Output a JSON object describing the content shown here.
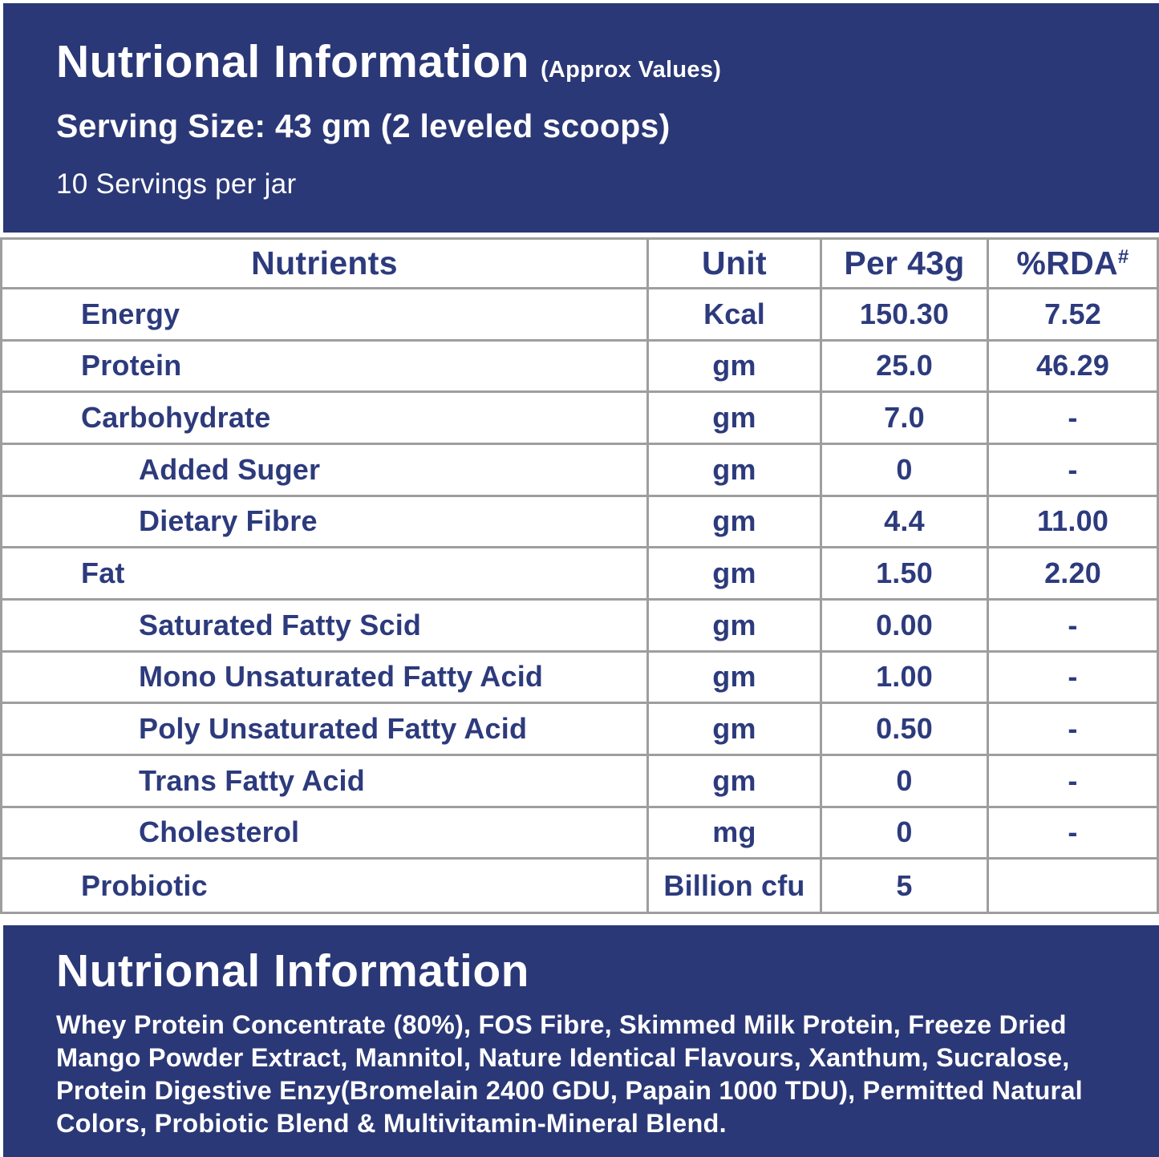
{
  "colors": {
    "navy_bg": "#2b3877",
    "table_text_navy": "#2d3b7d",
    "border_gray": "#9e9e9e",
    "white": "#ffffff"
  },
  "header": {
    "title": "Nutrional Information",
    "title_suffix": "(Approx Values)",
    "serving_size": "Serving Size: 43 gm (2 leveled scoops)",
    "servings_per_jar": "10 Servings per jar"
  },
  "table": {
    "columns": [
      "Nutrients",
      "Unit",
      "Per 43g",
      "%RDA"
    ],
    "rda_sup": "#",
    "rows": [
      {
        "nutrient": "Energy",
        "indent": 0,
        "unit": "Kcal",
        "per43g": "150.30",
        "rda": "7.52"
      },
      {
        "nutrient": "Protein",
        "indent": 0,
        "unit": "gm",
        "per43g": "25.0",
        "rda": "46.29"
      },
      {
        "nutrient": "Carbohydrate",
        "indent": 0,
        "unit": "gm",
        "per43g": "7.0",
        "rda": "-"
      },
      {
        "nutrient": "Added Suger",
        "indent": 1,
        "unit": "gm",
        "per43g": "0",
        "rda": "-"
      },
      {
        "nutrient": "Dietary Fibre",
        "indent": 1,
        "unit": "gm",
        "per43g": "4.4",
        "rda": "11.00"
      },
      {
        "nutrient": "Fat",
        "indent": 0,
        "unit": "gm",
        "per43g": "1.50",
        "rda": "2.20"
      },
      {
        "nutrient": "Saturated Fatty Scid",
        "indent": 1,
        "unit": "gm",
        "per43g": "0.00",
        "rda": "-"
      },
      {
        "nutrient": "Mono Unsaturated Fatty Acid",
        "indent": 1,
        "unit": "gm",
        "per43g": "1.00",
        "rda": "-"
      },
      {
        "nutrient": "Poly Unsaturated Fatty Acid",
        "indent": 1,
        "unit": "gm",
        "per43g": "0.50",
        "rda": "-"
      },
      {
        "nutrient": "Trans Fatty Acid",
        "indent": 1,
        "unit": "gm",
        "per43g": "0",
        "rda": "-"
      },
      {
        "nutrient": "Cholesterol",
        "indent": 1,
        "unit": "mg",
        "per43g": "0",
        "rda": "-"
      },
      {
        "nutrient": "Probiotic",
        "indent": 0,
        "unit": "Billion cfu",
        "per43g": "5",
        "rda": ""
      }
    ]
  },
  "footer": {
    "title": "Nutrional Information",
    "ingredients": "Whey Protein Concentrate (80%), FOS Fibre, Skimmed Milk Protein, Freeze Dried Mango Powder Extract, Mannitol, Nature Identical Flavours, Xanthum, Sucralose, Protein Digestive Enzy(Bromelain 2400 GDU, Papain 1000 TDU), Permitted Natural Colors, Probiotic Blend & Multivitamin-Mineral Blend."
  }
}
